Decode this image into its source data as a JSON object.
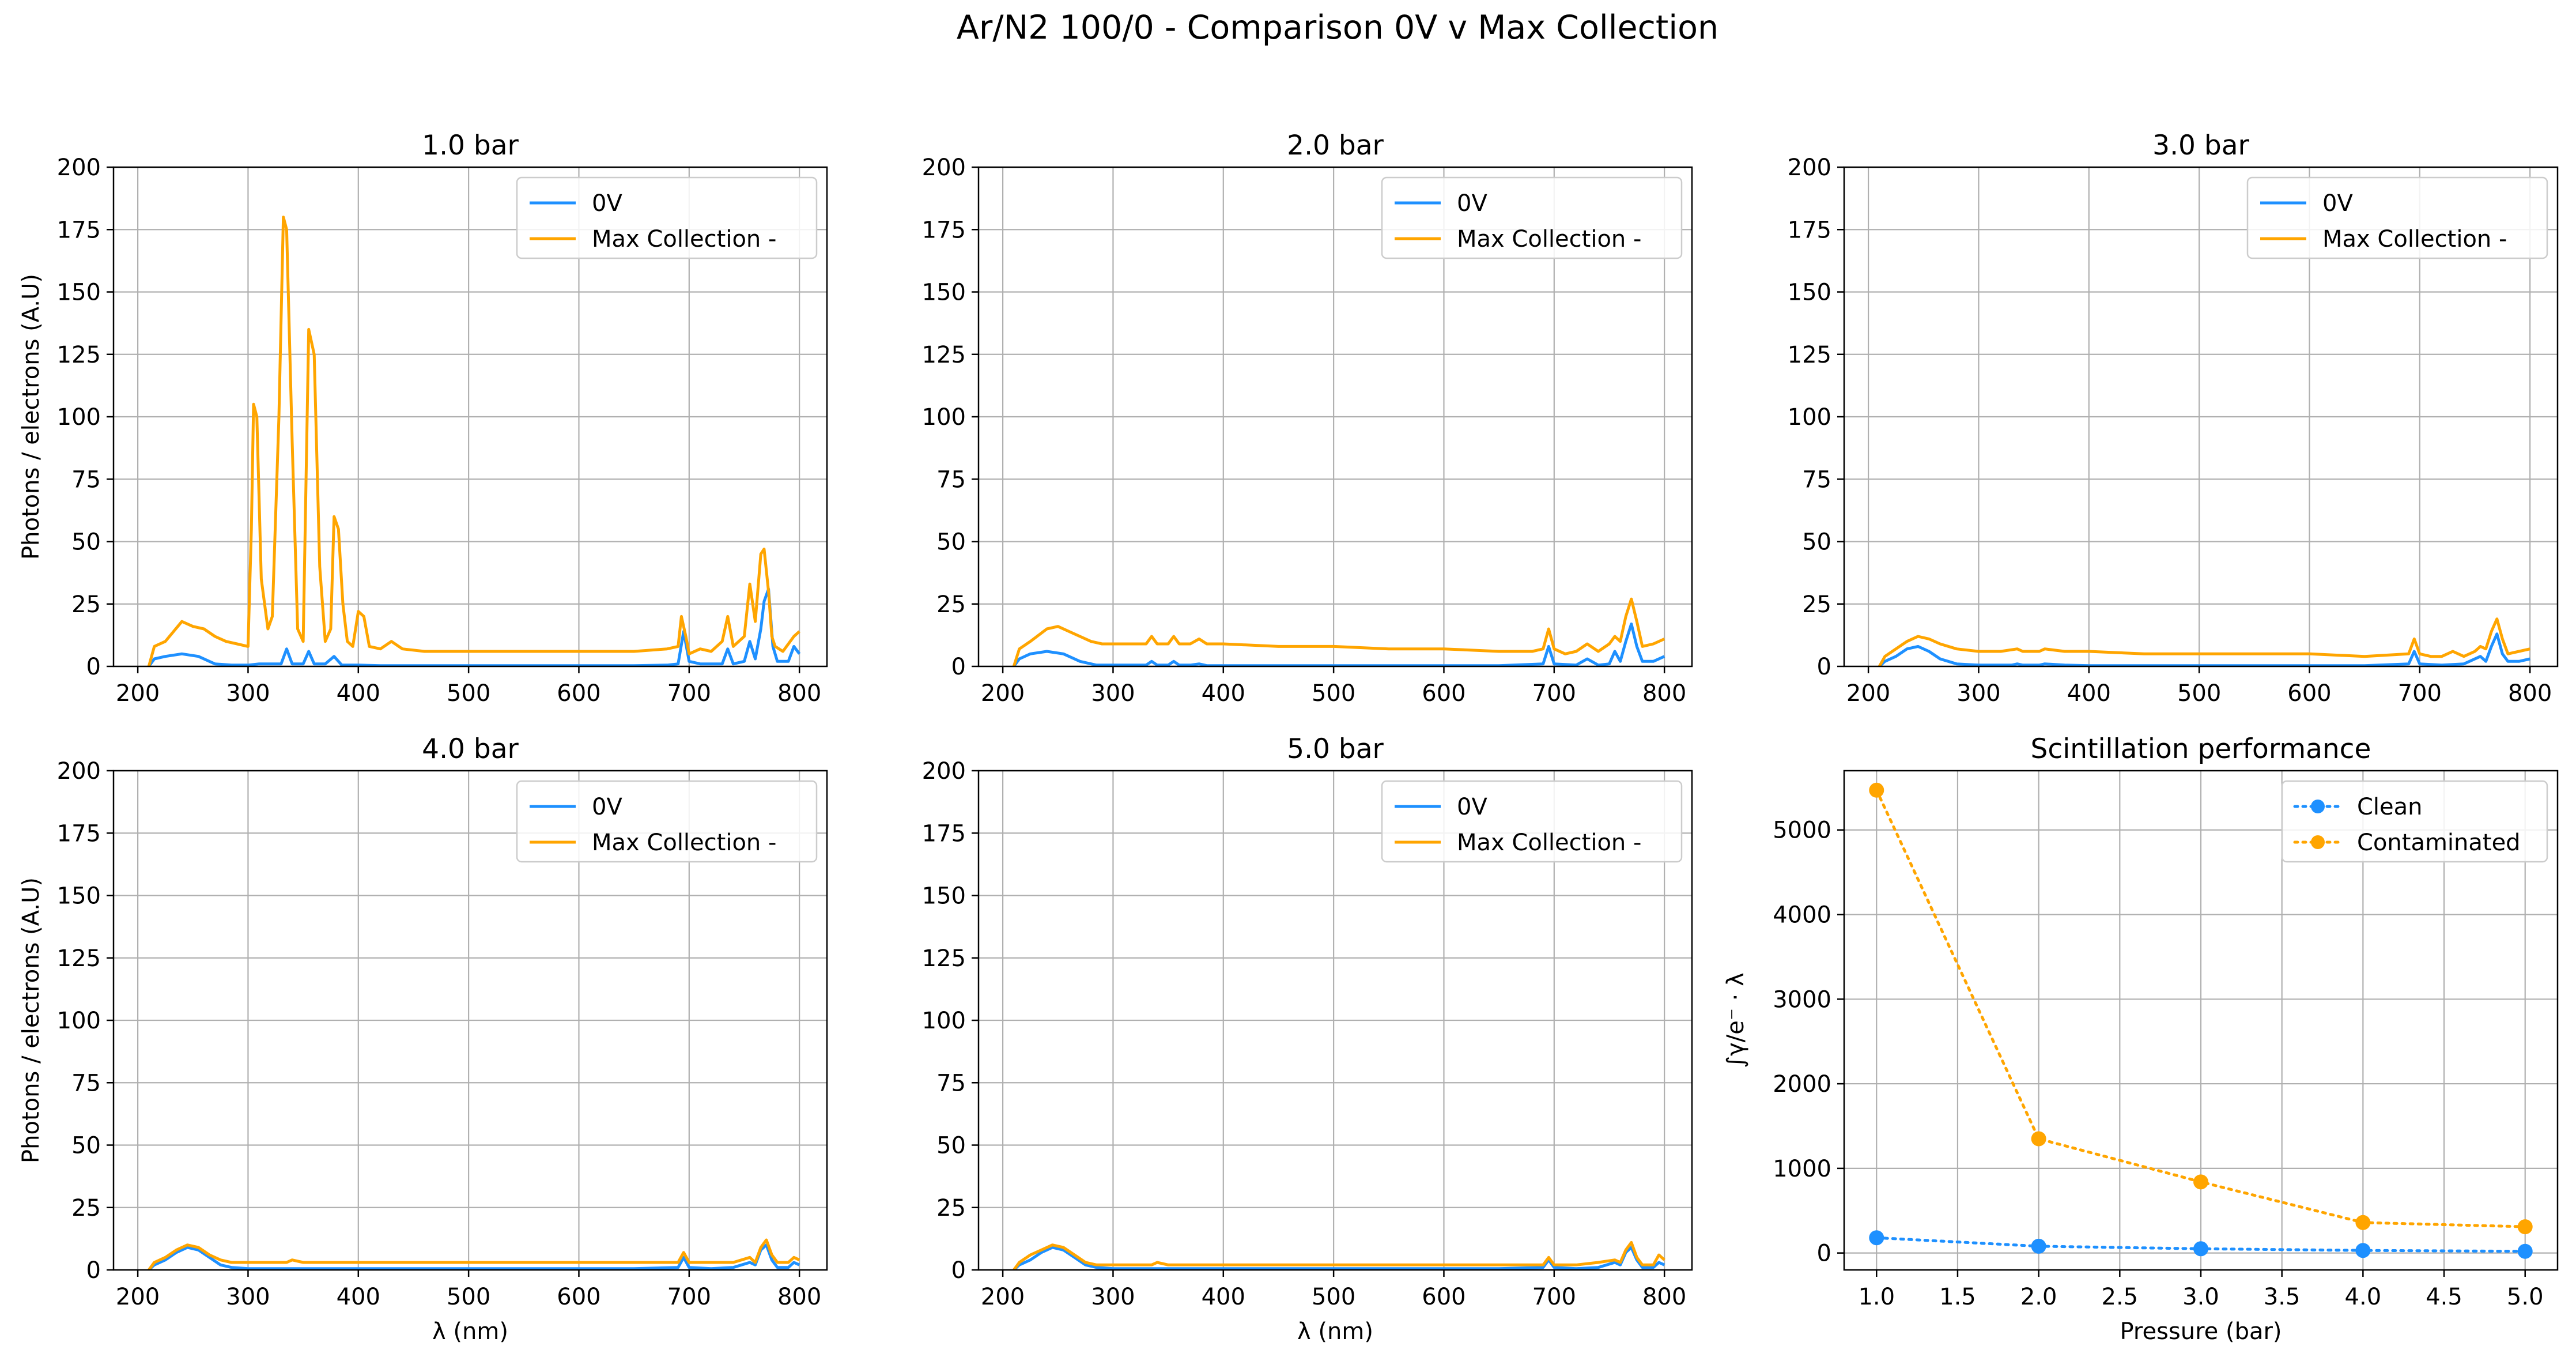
{
  "figure": {
    "title": "Ar/N2 100/0 - Comparison 0V v Max Collection"
  },
  "colors": {
    "clean": "#1e90ff",
    "contaminated": "#ffa500",
    "grid": "#b0b0b0",
    "axes": "#000000"
  },
  "chart_data": [
    {
      "type": "line",
      "title": "1.0 bar",
      "xlabel": "",
      "ylabel": "Photons / electrons (A.U)",
      "xlim": [
        178,
        825
      ],
      "ylim": [
        0,
        200
      ],
      "xticks": [
        200,
        300,
        400,
        500,
        600,
        700,
        800
      ],
      "yticks": [
        0,
        25,
        50,
        75,
        100,
        125,
        150,
        175,
        200
      ],
      "grid": true,
      "legend": "upper right",
      "series": [
        {
          "name": "0V",
          "x": [
            210,
            215,
            225,
            240,
            255,
            270,
            285,
            300,
            310,
            320,
            330,
            335,
            340,
            350,
            355,
            360,
            370,
            378,
            385,
            400,
            420,
            450,
            500,
            550,
            600,
            650,
            680,
            690,
            695,
            700,
            710,
            720,
            730,
            735,
            740,
            750,
            755,
            760,
            765,
            768,
            772,
            776,
            780,
            790,
            795,
            800
          ],
          "y": [
            0,
            3,
            4,
            5,
            4,
            1,
            0.5,
            0.5,
            1,
            1,
            1,
            7,
            1,
            1,
            6,
            1,
            1,
            4,
            0.5,
            0.5,
            0.3,
            0.3,
            0.3,
            0.3,
            0.3,
            0.3,
            0.5,
            1,
            14,
            2,
            1,
            1,
            1,
            7,
            1,
            2,
            10,
            3,
            15,
            26,
            31,
            8,
            2,
            2,
            8,
            5
          ]
        },
        {
          "name": "Max Collection -",
          "x": [
            210,
            215,
            225,
            240,
            250,
            260,
            270,
            280,
            290,
            300,
            303,
            305,
            308,
            312,
            318,
            322,
            328,
            332,
            335,
            340,
            345,
            350,
            355,
            360,
            365,
            370,
            375,
            378,
            382,
            386,
            390,
            395,
            400,
            405,
            410,
            420,
            430,
            440,
            460,
            500,
            550,
            600,
            650,
            680,
            690,
            693,
            697,
            700,
            710,
            720,
            730,
            735,
            740,
            750,
            755,
            760,
            765,
            768,
            772,
            775,
            778,
            785,
            795,
            800
          ],
          "y": [
            0,
            8,
            10,
            18,
            16,
            15,
            12,
            10,
            9,
            8,
            55,
            105,
            100,
            35,
            15,
            20,
            100,
            180,
            175,
            90,
            15,
            10,
            135,
            125,
            40,
            10,
            15,
            60,
            55,
            25,
            10,
            8,
            22,
            20,
            8,
            7,
            10,
            7,
            6,
            6,
            6,
            6,
            6,
            7,
            8,
            20,
            12,
            5,
            7,
            6,
            10,
            20,
            8,
            12,
            33,
            18,
            45,
            47,
            30,
            12,
            8,
            6,
            12,
            14
          ]
        }
      ]
    },
    {
      "type": "line",
      "title": "2.0 bar",
      "xlabel": "",
      "ylabel": "",
      "xlim": [
        178,
        825
      ],
      "ylim": [
        0,
        200
      ],
      "xticks": [
        200,
        300,
        400,
        500,
        600,
        700,
        800
      ],
      "yticks": [
        0,
        25,
        50,
        75,
        100,
        125,
        150,
        175,
        200
      ],
      "grid": true,
      "legend": "upper right",
      "series": [
        {
          "name": "0V",
          "x": [
            210,
            215,
            225,
            240,
            255,
            270,
            285,
            300,
            320,
            330,
            335,
            340,
            350,
            355,
            360,
            370,
            378,
            385,
            400,
            450,
            500,
            550,
            600,
            650,
            690,
            695,
            700,
            720,
            730,
            740,
            750,
            755,
            760,
            765,
            770,
            775,
            780,
            790,
            800
          ],
          "y": [
            0,
            3,
            5,
            6,
            5,
            2,
            0.5,
            0.5,
            0.5,
            0.5,
            2,
            0.5,
            0.5,
            2,
            0.5,
            0.5,
            1,
            0.3,
            0.3,
            0.3,
            0.3,
            0.3,
            0.3,
            0.3,
            1,
            8,
            1,
            0.5,
            3,
            0.5,
            1,
            6,
            2,
            10,
            17,
            8,
            2,
            2,
            4
          ]
        },
        {
          "name": "Max Collection -",
          "x": [
            210,
            215,
            225,
            240,
            250,
            260,
            270,
            280,
            290,
            300,
            310,
            320,
            330,
            335,
            340,
            350,
            355,
            360,
            370,
            378,
            385,
            400,
            450,
            500,
            550,
            600,
            650,
            680,
            690,
            695,
            700,
            710,
            720,
            730,
            740,
            750,
            755,
            760,
            765,
            770,
            775,
            780,
            790,
            800
          ],
          "y": [
            0,
            7,
            10,
            15,
            16,
            14,
            12,
            10,
            9,
            9,
            9,
            9,
            9,
            12,
            9,
            9,
            12,
            9,
            9,
            11,
            9,
            9,
            8,
            8,
            7,
            7,
            6,
            6,
            7,
            15,
            7,
            5,
            6,
            9,
            6,
            9,
            12,
            10,
            20,
            27,
            18,
            8,
            9,
            11
          ]
        }
      ]
    },
    {
      "type": "line",
      "title": "3.0 bar",
      "xlabel": "",
      "ylabel": "",
      "xlim": [
        178,
        825
      ],
      "ylim": [
        0,
        200
      ],
      "xticks": [
        200,
        300,
        400,
        500,
        600,
        700,
        800
      ],
      "yticks": [
        0,
        25,
        50,
        75,
        100,
        125,
        150,
        175,
        200
      ],
      "grid": true,
      "legend": "upper right",
      "series": [
        {
          "name": "0V",
          "x": [
            210,
            215,
            225,
            235,
            245,
            255,
            265,
            280,
            300,
            330,
            335,
            340,
            355,
            360,
            378,
            400,
            450,
            500,
            550,
            600,
            650,
            690,
            695,
            700,
            720,
            740,
            755,
            760,
            765,
            770,
            775,
            780,
            790,
            800
          ],
          "y": [
            0,
            2,
            4,
            7,
            8,
            6,
            3,
            1,
            0.5,
            0.5,
            1,
            0.5,
            0.5,
            1,
            0.5,
            0.3,
            0.3,
            0.3,
            0.3,
            0.3,
            0.3,
            1,
            6,
            1,
            0.5,
            1,
            4,
            2,
            8,
            13,
            5,
            2,
            2,
            3
          ]
        },
        {
          "name": "Max Collection -",
          "x": [
            210,
            215,
            225,
            235,
            245,
            255,
            265,
            280,
            300,
            320,
            335,
            340,
            355,
            360,
            378,
            400,
            450,
            500,
            550,
            600,
            650,
            690,
            695,
            700,
            710,
            720,
            730,
            740,
            750,
            755,
            760,
            765,
            770,
            775,
            780,
            790,
            800
          ],
          "y": [
            0,
            4,
            7,
            10,
            12,
            11,
            9,
            7,
            6,
            6,
            7,
            6,
            6,
            7,
            6,
            6,
            5,
            5,
            5,
            5,
            4,
            5,
            11,
            5,
            4,
            4,
            6,
            4,
            6,
            8,
            7,
            14,
            19,
            11,
            5,
            6,
            7
          ]
        }
      ]
    },
    {
      "type": "line",
      "title": "4.0 bar",
      "xlabel": "λ (nm)",
      "ylabel": "Photons / electrons (A.U)",
      "xlim": [
        178,
        825
      ],
      "ylim": [
        0,
        200
      ],
      "xticks": [
        200,
        300,
        400,
        500,
        600,
        700,
        800
      ],
      "yticks": [
        0,
        25,
        50,
        75,
        100,
        125,
        150,
        175,
        200
      ],
      "grid": true,
      "legend": "upper right",
      "series": [
        {
          "name": "0V",
          "x": [
            210,
            215,
            225,
            235,
            245,
            255,
            265,
            275,
            285,
            300,
            350,
            400,
            450,
            500,
            550,
            600,
            650,
            690,
            695,
            700,
            720,
            740,
            755,
            760,
            765,
            770,
            775,
            780,
            790,
            795,
            800
          ],
          "y": [
            0,
            2,
            4,
            7,
            9,
            8,
            5,
            2,
            1,
            0.5,
            0.5,
            0.5,
            0.5,
            0.5,
            0.5,
            0.5,
            0.5,
            1,
            5,
            1,
            0.5,
            1,
            3,
            2,
            8,
            10,
            4,
            1,
            1,
            3,
            2
          ]
        },
        {
          "name": "Max Collection -",
          "x": [
            210,
            215,
            225,
            235,
            245,
            255,
            265,
            275,
            285,
            300,
            335,
            340,
            350,
            400,
            450,
            500,
            550,
            600,
            650,
            690,
            695,
            700,
            720,
            740,
            755,
            760,
            765,
            770,
            775,
            780,
            790,
            795,
            800
          ],
          "y": [
            0,
            3,
            5,
            8,
            10,
            9,
            6,
            4,
            3,
            3,
            3,
            4,
            3,
            3,
            3,
            3,
            3,
            3,
            3,
            3,
            7,
            3,
            3,
            3,
            5,
            3,
            9,
            12,
            6,
            3,
            3,
            5,
            4
          ]
        }
      ]
    },
    {
      "type": "line",
      "title": "5.0 bar",
      "xlabel": "λ (nm)",
      "ylabel": "",
      "xlim": [
        178,
        825
      ],
      "ylim": [
        0,
        200
      ],
      "xticks": [
        200,
        300,
        400,
        500,
        600,
        700,
        800
      ],
      "yticks": [
        0,
        25,
        50,
        75,
        100,
        125,
        150,
        175,
        200
      ],
      "grid": true,
      "legend": "upper right",
      "series": [
        {
          "name": "0V",
          "x": [
            210,
            215,
            225,
            235,
            245,
            255,
            265,
            275,
            285,
            300,
            350,
            400,
            450,
            500,
            550,
            600,
            650,
            690,
            695,
            700,
            720,
            740,
            755,
            760,
            765,
            770,
            775,
            780,
            790,
            795,
            800
          ],
          "y": [
            0,
            2,
            4,
            7,
            9,
            8,
            5,
            2,
            1,
            0.5,
            0.5,
            0.5,
            0.5,
            0.5,
            0.5,
            0.5,
            0.5,
            1,
            4,
            1,
            0.5,
            1,
            3,
            2,
            7,
            9,
            4,
            1,
            1,
            3,
            2
          ]
        },
        {
          "name": "Max Collection -",
          "x": [
            210,
            215,
            225,
            235,
            245,
            255,
            265,
            275,
            285,
            300,
            335,
            340,
            350,
            400,
            450,
            500,
            550,
            600,
            650,
            690,
            695,
            700,
            720,
            740,
            755,
            760,
            765,
            770,
            775,
            780,
            790,
            795,
            800
          ],
          "y": [
            0,
            3,
            6,
            8,
            10,
            9,
            6,
            3,
            2,
            2,
            2,
            3,
            2,
            2,
            2,
            2,
            2,
            2,
            2,
            2,
            5,
            2,
            2,
            3,
            4,
            3,
            8,
            11,
            5,
            2,
            2,
            6,
            4
          ]
        }
      ]
    },
    {
      "type": "scatter",
      "title": "Scintillation performance",
      "xlabel": "Pressure (bar)",
      "ylabel": "∫γ/e⁻ · λ",
      "xlim": [
        0.8,
        5.2
      ],
      "ylim": [
        -200,
        5700
      ],
      "xticks": [
        1.0,
        1.5,
        2.0,
        2.5,
        3.0,
        3.5,
        4.0,
        4.5,
        5.0
      ],
      "yticks": [
        0,
        1000,
        2000,
        3000,
        4000,
        5000
      ],
      "grid": true,
      "legend": "upper right",
      "series": [
        {
          "name": "Clean",
          "x": [
            1.0,
            2.0,
            3.0,
            4.0,
            5.0
          ],
          "y": [
            180,
            80,
            50,
            30,
            20
          ]
        },
        {
          "name": "Contaminated",
          "x": [
            1.0,
            2.0,
            3.0,
            4.0,
            5.0
          ],
          "y": [
            5470,
            1350,
            840,
            360,
            310
          ]
        }
      ]
    }
  ]
}
